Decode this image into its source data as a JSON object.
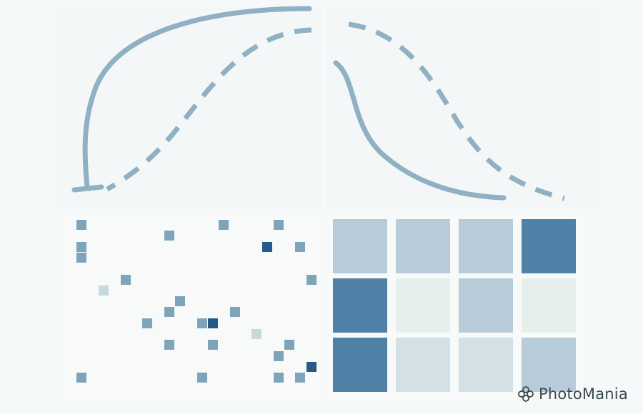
{
  "watermark": {
    "text": "PhotoMania",
    "icon": "flower-icon"
  },
  "colors": {
    "arrow": "#8fb1c3",
    "scatter_levels": [
      "#e6efef",
      "#c7d8df",
      "#9fbdcd",
      "#7ea4bb",
      "#235a86"
    ],
    "matrix_levels": [
      "#e7efed",
      "#d3e0e5",
      "#b7ccd8",
      "#4f80a6"
    ]
  },
  "arrows": [
    {
      "name": "solid-arrow-left",
      "style": "solid"
    },
    {
      "name": "dashed-arrow-left",
      "style": "dashed"
    },
    {
      "name": "dashed-arrow-right",
      "style": "dashed"
    },
    {
      "name": "solid-arrow-right",
      "style": "solid"
    }
  ],
  "scatter_points": [
    {
      "col": 1,
      "row": 0,
      "level": 3
    },
    {
      "col": 1,
      "row": 2,
      "level": 3
    },
    {
      "col": 1,
      "row": 3,
      "level": 3
    },
    {
      "col": 9,
      "row": 1,
      "level": 3
    },
    {
      "col": 14,
      "row": 0,
      "level": 3
    },
    {
      "col": 19,
      "row": 0,
      "level": 3
    },
    {
      "col": 18,
      "row": 2,
      "level": 4
    },
    {
      "col": 21,
      "row": 2,
      "level": 3
    },
    {
      "col": 3,
      "row": 6,
      "level": 1
    },
    {
      "col": 5,
      "row": 5,
      "level": 3
    },
    {
      "col": 22,
      "row": 5,
      "level": 3
    },
    {
      "col": 10,
      "row": 7,
      "level": 3
    },
    {
      "col": 9,
      "row": 8,
      "level": 3
    },
    {
      "col": 7,
      "row": 9,
      "level": 3
    },
    {
      "col": 12,
      "row": 9,
      "level": 3
    },
    {
      "col": 13,
      "row": 9,
      "level": 4
    },
    {
      "col": 15,
      "row": 8,
      "level": 3
    },
    {
      "col": 17,
      "row": 10,
      "level": 1
    },
    {
      "col": 9,
      "row": 11,
      "level": 3
    },
    {
      "col": 13,
      "row": 11,
      "level": 3
    },
    {
      "col": 20,
      "row": 11,
      "level": 3
    },
    {
      "col": 19,
      "row": 12,
      "level": 3
    },
    {
      "col": 22,
      "row": 13,
      "level": 4
    },
    {
      "col": 1,
      "row": 14,
      "level": 3
    },
    {
      "col": 12,
      "row": 14,
      "level": 3
    },
    {
      "col": 19,
      "row": 14,
      "level": 3
    },
    {
      "col": 21,
      "row": 14,
      "level": 3
    }
  ],
  "matrix": [
    [
      2,
      2,
      2,
      3
    ],
    [
      3,
      0,
      2,
      0
    ],
    [
      3,
      1,
      1,
      2
    ]
  ]
}
